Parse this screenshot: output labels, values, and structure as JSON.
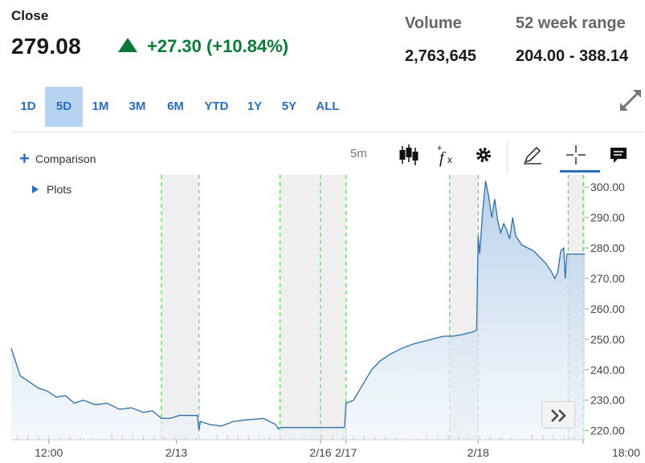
{
  "header": {
    "close_label": "Close",
    "close_value": "279.08",
    "change": "+27.30 (+10.84%)",
    "volume_label": "Volume",
    "volume_value": "2,763,645",
    "range_label": "52 week range",
    "range_value": "204.00 - 388.14"
  },
  "range_tabs": [
    {
      "label": "1D",
      "active": false
    },
    {
      "label": "5D",
      "active": true
    },
    {
      "label": "1M",
      "active": false
    },
    {
      "label": "3M",
      "active": false
    },
    {
      "label": "6M",
      "active": false
    },
    {
      "label": "YTD",
      "active": false
    },
    {
      "label": "1Y",
      "active": false
    },
    {
      "label": "5Y",
      "active": false
    },
    {
      "label": "ALL",
      "active": false
    }
  ],
  "toolbar": {
    "comparison_label": "Comparison",
    "plots_label": "Plots",
    "interval": "5m",
    "icons": [
      "candlestick-icon",
      "function-icon",
      "gear-icon",
      "pencil-icon",
      "crosshair-icon",
      "comment-icon"
    ]
  },
  "colors": {
    "accent": "#2a6ebb",
    "up": "#0a7a38",
    "line": "#2f6ea8",
    "session_line": "#55d655",
    "closed_shade": "#efefef"
  },
  "chart_data": {
    "type": "area",
    "ylim": [
      217,
      304
    ],
    "yticks": [
      "300.00",
      "290.00",
      "280.00",
      "270.00",
      "260.00",
      "250.00",
      "240.00",
      "230.00",
      "220.00"
    ],
    "xtick_labels": [
      "12:00",
      "2/13",
      "2/16",
      "2/17",
      "2/18",
      "18:00"
    ],
    "xlabel": "",
    "ylabel": "",
    "grid": false,
    "series": [
      {
        "points": [
          [
            0,
            247
          ],
          [
            3,
            238
          ],
          [
            6,
            236
          ],
          [
            9,
            234
          ],
          [
            12,
            233
          ],
          [
            15,
            231
          ],
          [
            18,
            231.5
          ],
          [
            21,
            229
          ],
          [
            24,
            230
          ],
          [
            28,
            228.5
          ],
          [
            32,
            229
          ],
          [
            36,
            227
          ],
          [
            40,
            227.5
          ],
          [
            44,
            226
          ],
          [
            47,
            226.5
          ],
          [
            50,
            224
          ],
          [
            53,
            224
          ],
          [
            56,
            225
          ],
          [
            60,
            225
          ],
          [
            62,
            225
          ],
          [
            62.5,
            220
          ],
          [
            63,
            223
          ],
          [
            66,
            222
          ],
          [
            70,
            221.5
          ],
          [
            74,
            223
          ],
          [
            78,
            223.5
          ],
          [
            82,
            223.8
          ],
          [
            84,
            224
          ],
          [
            86,
            223
          ],
          [
            88,
            222
          ],
          [
            89,
            220.5
          ],
          [
            89.5,
            221
          ],
          [
            92,
            221
          ],
          [
            96,
            221
          ],
          [
            100,
            221
          ],
          [
            104,
            221
          ],
          [
            108,
            221
          ],
          [
            111,
            221
          ],
          [
            111.5,
            229
          ],
          [
            114,
            230
          ],
          [
            117,
            235
          ],
          [
            120,
            240
          ],
          [
            123,
            243
          ],
          [
            126,
            245
          ],
          [
            130,
            247
          ],
          [
            134,
            248.5
          ],
          [
            138,
            249.5
          ],
          [
            142,
            250.5
          ],
          [
            144,
            251
          ],
          [
            147,
            251
          ],
          [
            150,
            251.5
          ],
          [
            152,
            252
          ],
          [
            154,
            252.5
          ],
          [
            155,
            253
          ],
          [
            155.5,
            284
          ],
          [
            156,
            278
          ],
          [
            157,
            292
          ],
          [
            158,
            302
          ],
          [
            159,
            297
          ],
          [
            160,
            290
          ],
          [
            161,
            296
          ],
          [
            162,
            289
          ],
          [
            163,
            285
          ],
          [
            164,
            288
          ],
          [
            165,
            286
          ],
          [
            166,
            283
          ],
          [
            167,
            290
          ],
          [
            168,
            284
          ],
          [
            170,
            281
          ],
          [
            172,
            280
          ],
          [
            174,
            279
          ],
          [
            176,
            277
          ],
          [
            178,
            275
          ],
          [
            180,
            272
          ],
          [
            181,
            270
          ],
          [
            182,
            272
          ],
          [
            183,
            279
          ],
          [
            184,
            280
          ],
          [
            184.5,
            270
          ],
          [
            185,
            278
          ],
          [
            187,
            278
          ],
          [
            189,
            278
          ],
          [
            191,
            278
          ]
        ]
      }
    ]
  }
}
